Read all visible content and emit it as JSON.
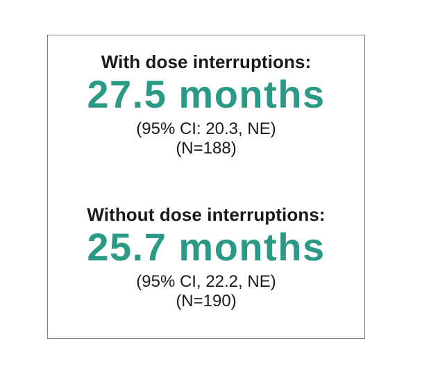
{
  "colors": {
    "accent": "#2a9a87",
    "text": "#1a1a1a",
    "border": "#7f7f7f"
  },
  "sections": [
    {
      "heading": "With dose interruptions:",
      "value": "27.5 months",
      "ci": "(95% CI: 20.3, NE)",
      "n": "(N=188)"
    },
    {
      "heading": "Without dose interruptions:",
      "value": "25.7 months",
      "ci": "(95% CI, 22.2, NE)",
      "n": "(N=190)"
    }
  ]
}
